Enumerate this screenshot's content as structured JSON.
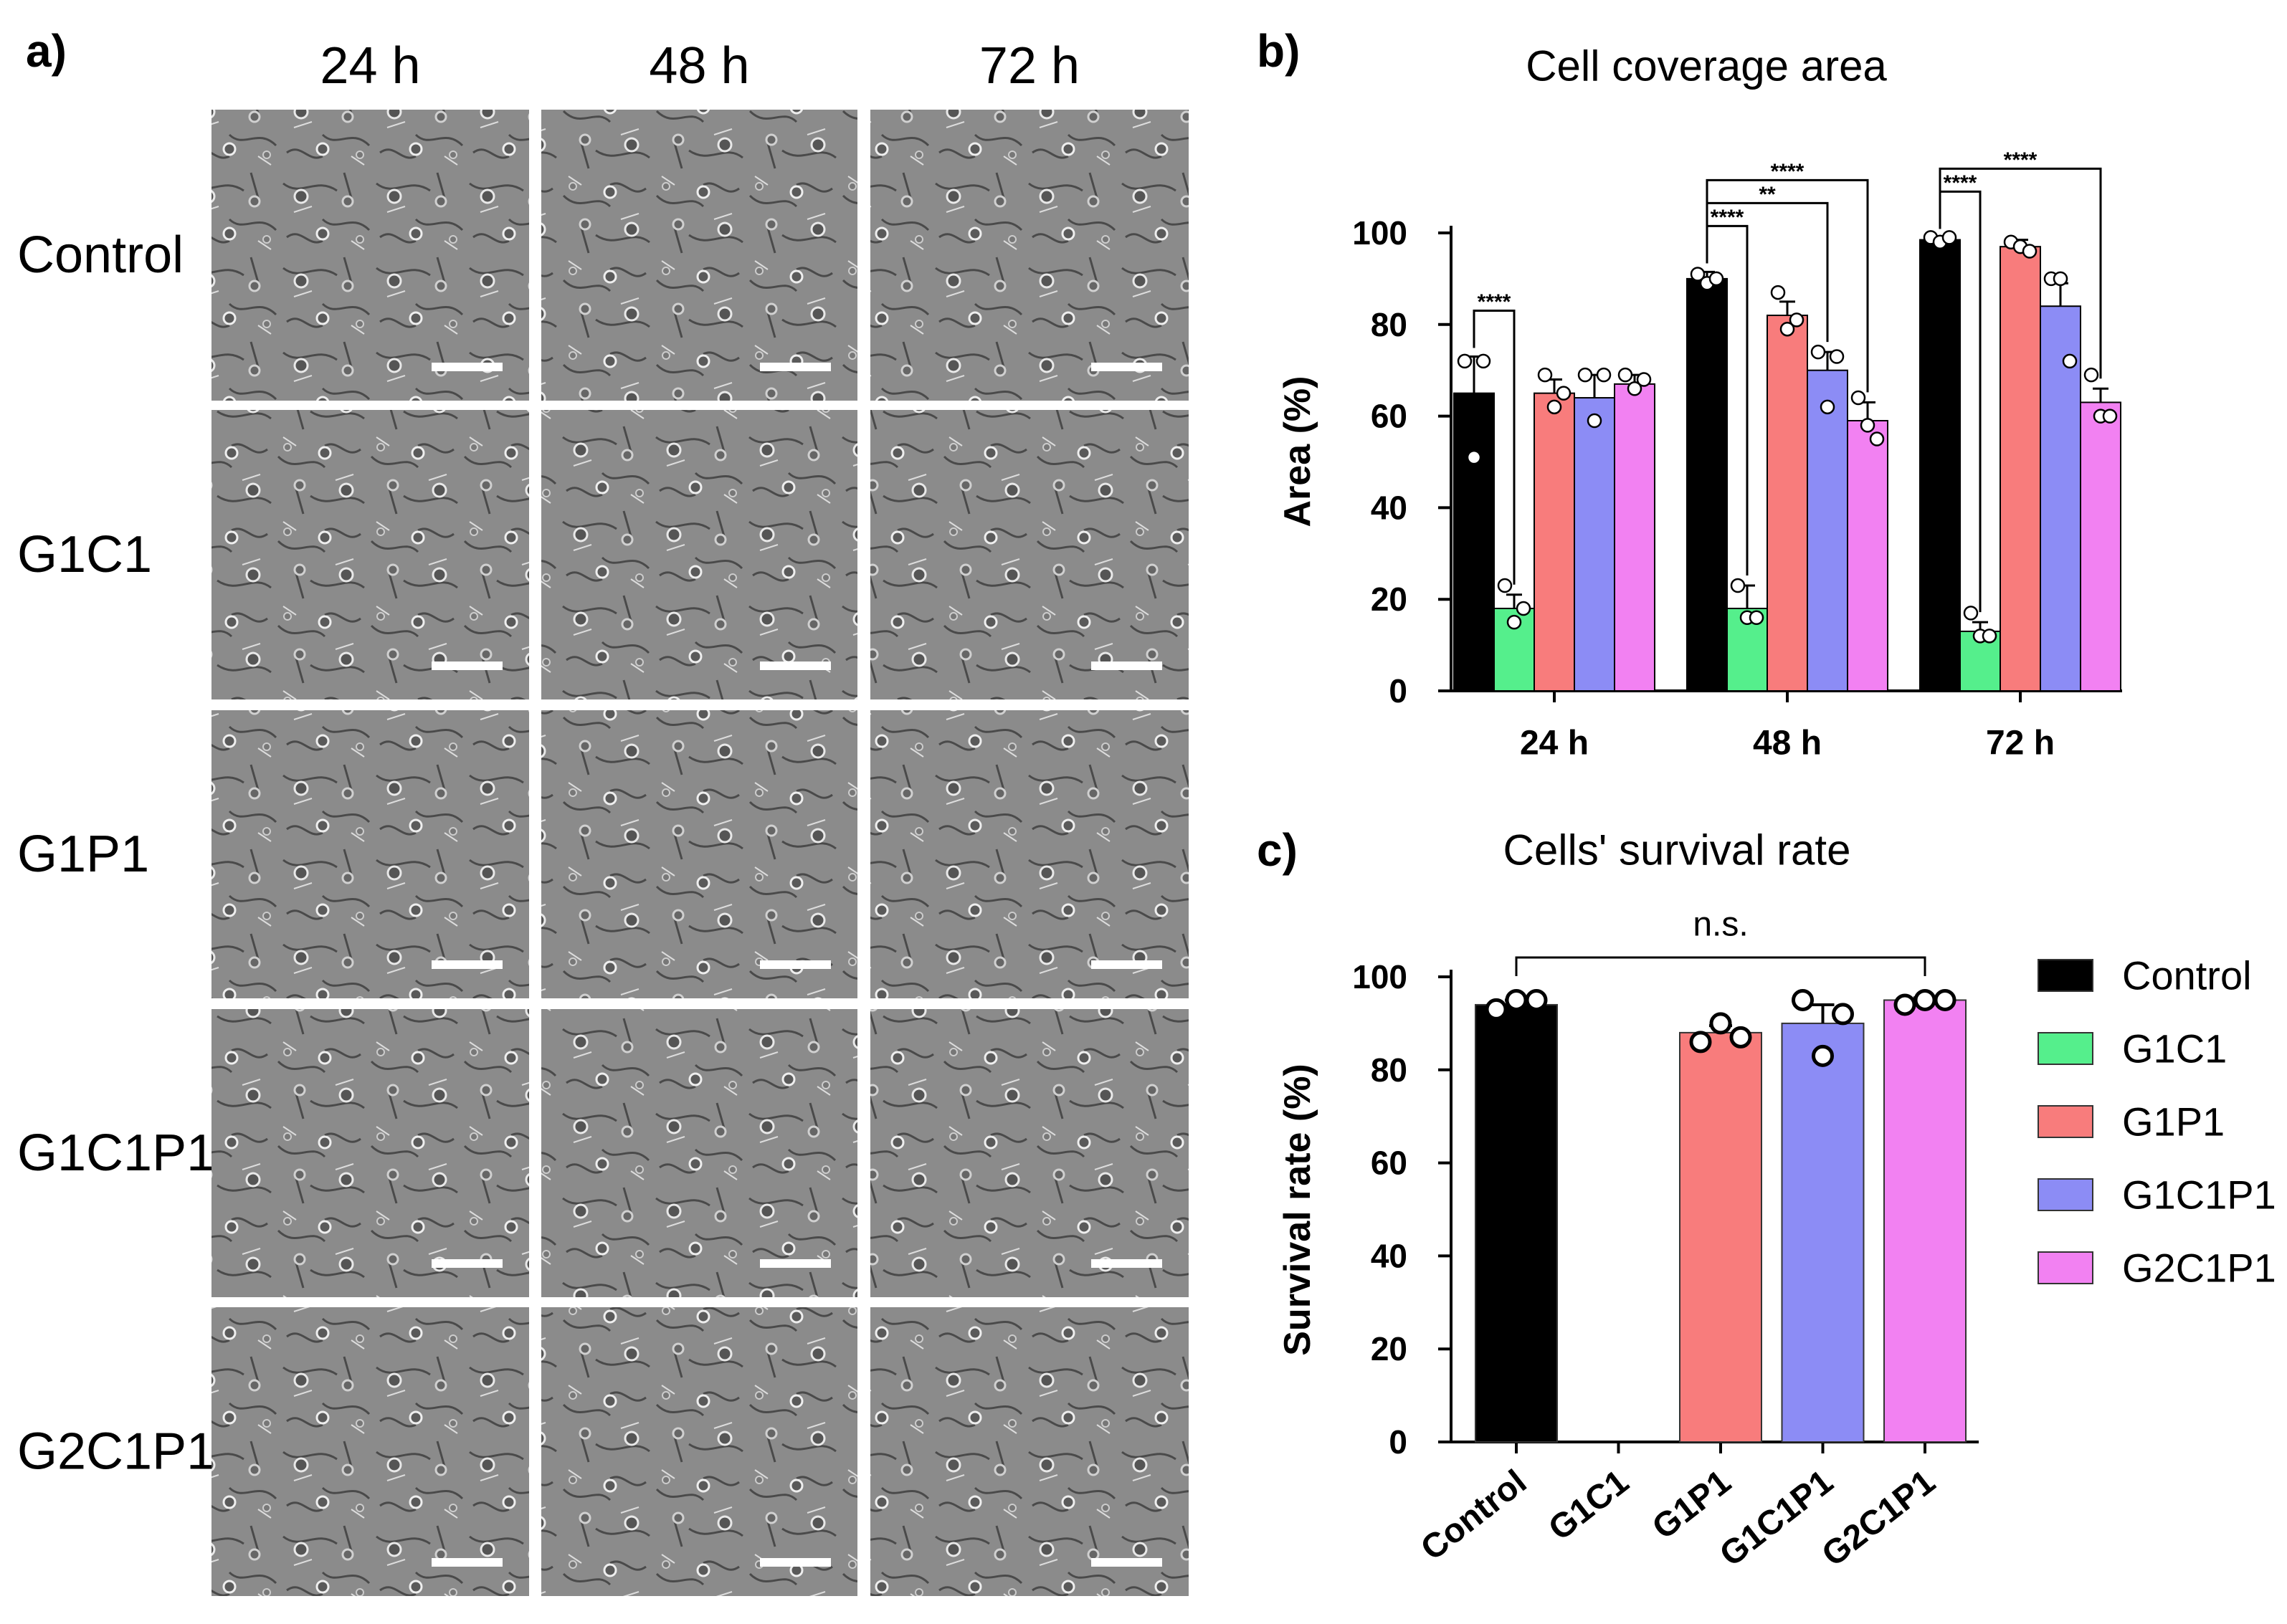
{
  "panel_a": {
    "label": "a)",
    "columns": [
      "24 h",
      "48 h",
      "72 h"
    ],
    "rows": [
      "Control",
      "G1C1",
      "G1P1",
      "G1C1P1",
      "G2C1P1"
    ]
  },
  "chart_data": [
    {
      "type": "bar",
      "panel_label": "b)",
      "title": "Cell coverage area",
      "y_label": "Area (%)",
      "categories": [
        "24 h",
        "48 h",
        "72 h"
      ],
      "series": [
        {
          "color": "#000000",
          "values": [
            65,
            90,
            98.5
          ],
          "errors": [
            8,
            1.5,
            0.5
          ],
          "points": [
            [
              72,
              51,
              72
            ],
            [
              91,
              89,
              90
            ],
            [
              99,
              98,
              99
            ]
          ],
          "significance": [
            null,
            null,
            null
          ]
        },
        {
          "color": "#55ef8c",
          "values": [
            18,
            18,
            13
          ],
          "errors": [
            3,
            5,
            2
          ],
          "points": [
            [
              23,
              15,
              18
            ],
            [
              23,
              16,
              16
            ],
            [
              17,
              12,
              12
            ]
          ],
          "significance": [
            "****",
            "****",
            "****"
          ]
        },
        {
          "color": "#f87c7c",
          "values": [
            65,
            82,
            97
          ],
          "errors": [
            3,
            3,
            1.5
          ],
          "points": [
            [
              69,
              62,
              65
            ],
            [
              87,
              79,
              81
            ],
            [
              98,
              97,
              96
            ]
          ],
          "significance": [
            null,
            null,
            null
          ]
        },
        {
          "color": "#8c8cf5",
          "values": [
            64,
            70,
            84
          ],
          "errors": [
            5,
            4,
            5
          ],
          "points": [
            [
              69,
              59,
              69
            ],
            [
              74,
              62,
              73
            ],
            [
              90,
              90,
              72
            ]
          ],
          "significance": [
            null,
            "**",
            null
          ]
        },
        {
          "color": "#f281f2",
          "values": [
            67,
            59,
            63
          ],
          "errors": [
            2,
            4,
            3
          ],
          "points": [
            [
              69,
              66,
              68
            ],
            [
              64,
              58,
              55
            ],
            [
              69,
              60,
              60
            ]
          ],
          "significance": [
            null,
            "****",
            "****"
          ]
        }
      ],
      "ylim": [
        0,
        100
      ],
      "yticks": [
        0,
        20,
        40,
        60,
        80,
        100
      ]
    },
    {
      "type": "bar",
      "panel_label": "c)",
      "title": "Cells' survival rate",
      "y_label": "Survival rate (%)",
      "categories": [
        "Control",
        "G1C1",
        "G1P1",
        "G1C1P1",
        "G2C1P1"
      ],
      "values": [
        94,
        null,
        88,
        90,
        95
      ],
      "errors": [
        1,
        null,
        1.5,
        4,
        0.5
      ],
      "points": [
        [
          93,
          95,
          95
        ],
        null,
        [
          86,
          90,
          87
        ],
        [
          95,
          83,
          92
        ],
        [
          94,
          95,
          95
        ]
      ],
      "colors": [
        "#000000",
        "#55ef8c",
        "#f87c7c",
        "#8c8cf5",
        "#f281f2"
      ],
      "annotation": "n.s.",
      "legend": "right",
      "ylim": [
        0,
        100
      ],
      "yticks": [
        0,
        20,
        40,
        60,
        80,
        100
      ]
    }
  ]
}
